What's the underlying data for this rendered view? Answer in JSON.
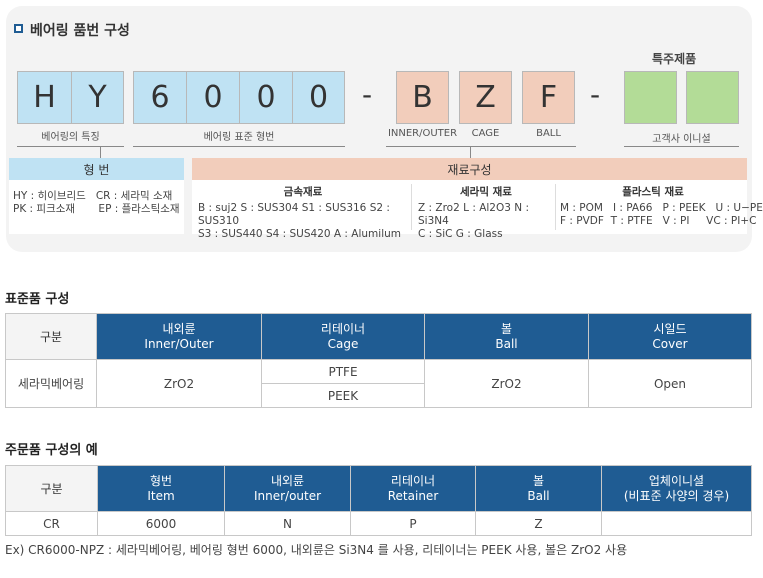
{
  "diagram": {
    "title": "베어링 품번 구성",
    "special_title": "특주제품",
    "feature_chars": [
      "H",
      "Y"
    ],
    "standard_chars": [
      "6",
      "0",
      "0",
      "0"
    ],
    "material_chars": [
      "B",
      "Z",
      "F"
    ],
    "dash": "-",
    "labels": {
      "feature": "베어링의 특징",
      "standard": "베어링 표준 형번",
      "inner": "INNER/OUTER",
      "cage": "CAGE",
      "ball": "BALL",
      "initial": "고객사 이니셜"
    },
    "type_header": "형 번",
    "type_lines": [
      "HY : 히이브리드   CR : 세라믹 소재",
      "PK : 피크소재       EP : 플라스틱소재"
    ],
    "material_header": "재료구성",
    "metal": {
      "title": "금속재료",
      "lines": [
        "B : suj2  S : SUS304  S1 : SUS316  S2 : SUS310",
        "S3 : SUS440  S4 : SUS420  A : Alumilum"
      ]
    },
    "ceramic": {
      "title": "세라믹 재료",
      "lines": [
        "Z : Zro2  L : Al2O3  N : Si3N4",
        "C : SiC  G : Glass"
      ]
    },
    "plastic": {
      "title": "플라스틱 재료",
      "lines": [
        "M : POM   I : PA66   P : PEEK   U : U−PE",
        "F : PVDF  T : PTFE   V : PI     VC : PI+C"
      ]
    },
    "colors": {
      "blue": "#bfe2f3",
      "peach": "#f2cdbb",
      "green": "#b3dc97",
      "header": "#1f5c93"
    }
  },
  "standard": {
    "title": "표준품 구성",
    "col0": "구분",
    "headers": [
      [
        "내외륜",
        "Inner/Outer"
      ],
      [
        "리테이너",
        "Cage"
      ],
      [
        "볼",
        "Ball"
      ],
      [
        "시일드",
        "Cover"
      ]
    ],
    "row_label": "세라믹베어링",
    "inner": "ZrO2",
    "cage": [
      "PTFE",
      "PEEK"
    ],
    "ball": "ZrO2",
    "cover": "Open"
  },
  "order": {
    "title": "주문품 구성의 예",
    "col0": "구분",
    "headers": [
      [
        "형번",
        "Item"
      ],
      [
        "내외륜",
        "Inner/outer"
      ],
      [
        "리테이너",
        "Retainer"
      ],
      [
        "볼",
        "Ball"
      ],
      [
        "업체이니셜",
        "(비표준 사양의 경우)"
      ]
    ],
    "row": [
      "CR",
      "6000",
      "N",
      "P",
      "Z",
      ""
    ],
    "example": "Ex) CR6000-NPZ : 세라믹베어링, 베어링 형번 6000, 내외륜은 Si3N4 를 사용, 리테이너는 PEEK 사용, 볼은 ZrO2 사용"
  }
}
